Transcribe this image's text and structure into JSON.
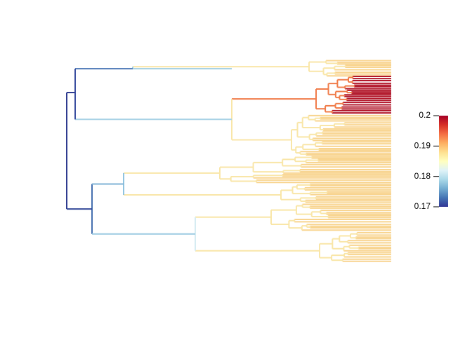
{
  "chart_data": {
    "type": "colorbar",
    "lim": [
      0.17,
      0.2
    ],
    "ticks": [
      0.17,
      0.18,
      0.19,
      0.2
    ],
    "colors": [
      "#313695",
      "#4575b4",
      "#74add1",
      "#abd9e9",
      "#e0f3f8",
      "#ffffbf",
      "#fee090",
      "#fdae61",
      "#f46d43",
      "#d73027",
      "#a50026"
    ]
  }
}
